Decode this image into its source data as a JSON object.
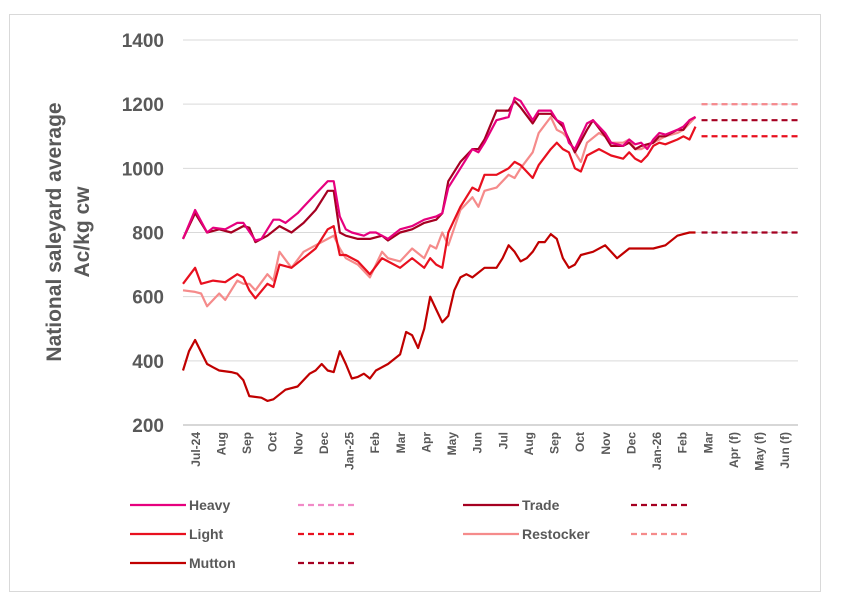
{
  "chart_data": {
    "type": "line",
    "ylabel": [
      "National saleyard average",
      "Ac/kg cw"
    ],
    "ylim": [
      200,
      1400
    ],
    "yticks": [
      200,
      400,
      600,
      800,
      1000,
      1200,
      1400
    ],
    "grid": "horizontal",
    "legend_position": "bottom",
    "month_labels": [
      "Jul-24",
      "Aug",
      "Sep",
      "Oct",
      "Nov",
      "Dec",
      "Jan-25",
      "Feb",
      "Mar",
      "Apr",
      "May",
      "Jun",
      "Jul",
      "Aug",
      "Sep",
      "Oct",
      "Nov",
      "Dec",
      "Jan-26",
      "Feb",
      "Mar",
      "Apr (f)",
      "May (f)",
      "Jun (f)"
    ],
    "x_range_weeks": [
      0,
      102
    ],
    "series": [
      {
        "name": "Heavy",
        "color": "#e6007e",
        "points": [
          [
            0,
            780
          ],
          [
            2,
            870
          ],
          [
            4,
            800
          ],
          [
            5,
            815
          ],
          [
            7,
            810
          ],
          [
            9,
            830
          ],
          [
            10,
            830
          ],
          [
            12,
            775
          ],
          [
            13,
            780
          ],
          [
            15,
            840
          ],
          [
            16,
            840
          ],
          [
            17,
            830
          ],
          [
            19,
            860
          ],
          [
            20,
            880
          ],
          [
            22,
            920
          ],
          [
            24,
            960
          ],
          [
            25,
            960
          ],
          [
            26,
            850
          ],
          [
            27,
            810
          ],
          [
            28,
            800
          ],
          [
            30,
            790
          ],
          [
            31,
            800
          ],
          [
            32,
            800
          ],
          [
            33,
            790
          ],
          [
            34,
            780
          ],
          [
            36,
            810
          ],
          [
            38,
            820
          ],
          [
            40,
            840
          ],
          [
            41,
            845
          ],
          [
            42,
            850
          ],
          [
            43,
            860
          ],
          [
            44,
            940
          ],
          [
            46,
            1000
          ],
          [
            48,
            1060
          ],
          [
            49,
            1050
          ],
          [
            50,
            1080
          ],
          [
            52,
            1150
          ],
          [
            54,
            1160
          ],
          [
            55,
            1220
          ],
          [
            56,
            1210
          ],
          [
            58,
            1150
          ],
          [
            59,
            1180
          ],
          [
            61,
            1180
          ],
          [
            62,
            1150
          ],
          [
            63,
            1140
          ],
          [
            64,
            1080
          ],
          [
            65,
            1060
          ],
          [
            67,
            1140
          ],
          [
            68,
            1150
          ],
          [
            70,
            1110
          ],
          [
            71,
            1080
          ],
          [
            73,
            1070
          ],
          [
            74,
            1090
          ],
          [
            75,
            1075
          ],
          [
            76,
            1080
          ],
          [
            77,
            1060
          ],
          [
            78,
            1090
          ],
          [
            79,
            1110
          ],
          [
            80,
            1105
          ],
          [
            82,
            1120
          ],
          [
            83,
            1130
          ],
          [
            84,
            1150
          ],
          [
            85,
            1160
          ]
        ]
      },
      {
        "name": "Trade",
        "color": "#a50021",
        "points": [
          [
            0,
            780
          ],
          [
            2,
            860
          ],
          [
            4,
            800
          ],
          [
            6,
            810
          ],
          [
            8,
            800
          ],
          [
            10,
            820
          ],
          [
            11,
            815
          ],
          [
            12,
            770
          ],
          [
            14,
            790
          ],
          [
            16,
            820
          ],
          [
            18,
            800
          ],
          [
            20,
            830
          ],
          [
            22,
            870
          ],
          [
            24,
            930
          ],
          [
            25,
            930
          ],
          [
            26,
            800
          ],
          [
            27,
            790
          ],
          [
            29,
            780
          ],
          [
            31,
            780
          ],
          [
            33,
            790
          ],
          [
            34,
            775
          ],
          [
            36,
            800
          ],
          [
            38,
            810
          ],
          [
            40,
            830
          ],
          [
            42,
            840
          ],
          [
            43,
            860
          ],
          [
            44,
            960
          ],
          [
            46,
            1020
          ],
          [
            48,
            1060
          ],
          [
            49,
            1060
          ],
          [
            50,
            1090
          ],
          [
            52,
            1180
          ],
          [
            54,
            1180
          ],
          [
            55,
            1210
          ],
          [
            56,
            1190
          ],
          [
            58,
            1140
          ],
          [
            59,
            1170
          ],
          [
            61,
            1170
          ],
          [
            62,
            1150
          ],
          [
            63,
            1130
          ],
          [
            64,
            1090
          ],
          [
            65,
            1050
          ],
          [
            67,
            1120
          ],
          [
            68,
            1150
          ],
          [
            70,
            1100
          ],
          [
            71,
            1070
          ],
          [
            73,
            1070
          ],
          [
            74,
            1080
          ],
          [
            75,
            1060
          ],
          [
            76,
            1070
          ],
          [
            78,
            1080
          ],
          [
            79,
            1100
          ],
          [
            80,
            1100
          ],
          [
            82,
            1120
          ],
          [
            83,
            1120
          ],
          [
            84,
            1150
          ],
          [
            85,
            1160
          ]
        ]
      },
      {
        "name": "Light",
        "color": "#e8101f",
        "points": [
          [
            0,
            640
          ],
          [
            2,
            690
          ],
          [
            3,
            640
          ],
          [
            5,
            650
          ],
          [
            7,
            645
          ],
          [
            9,
            670
          ],
          [
            10,
            660
          ],
          [
            11,
            620
          ],
          [
            12,
            595
          ],
          [
            14,
            640
          ],
          [
            15,
            630
          ],
          [
            16,
            700
          ],
          [
            18,
            690
          ],
          [
            20,
            720
          ],
          [
            22,
            750
          ],
          [
            24,
            810
          ],
          [
            25,
            820
          ],
          [
            26,
            730
          ],
          [
            27,
            730
          ],
          [
            29,
            710
          ],
          [
            31,
            670
          ],
          [
            33,
            720
          ],
          [
            34,
            710
          ],
          [
            36,
            690
          ],
          [
            38,
            720
          ],
          [
            40,
            690
          ],
          [
            41,
            720
          ],
          [
            42,
            700
          ],
          [
            43,
            690
          ],
          [
            44,
            800
          ],
          [
            46,
            880
          ],
          [
            48,
            940
          ],
          [
            49,
            930
          ],
          [
            50,
            980
          ],
          [
            52,
            980
          ],
          [
            54,
            1000
          ],
          [
            55,
            1020
          ],
          [
            56,
            1010
          ],
          [
            58,
            970
          ],
          [
            59,
            1010
          ],
          [
            61,
            1060
          ],
          [
            62,
            1080
          ],
          [
            63,
            1060
          ],
          [
            64,
            1050
          ],
          [
            65,
            1000
          ],
          [
            66,
            990
          ],
          [
            67,
            1040
          ],
          [
            69,
            1060
          ],
          [
            70,
            1050
          ],
          [
            71,
            1040
          ],
          [
            73,
            1030
          ],
          [
            74,
            1050
          ],
          [
            75,
            1030
          ],
          [
            76,
            1020
          ],
          [
            77,
            1040
          ],
          [
            78,
            1070
          ],
          [
            79,
            1080
          ],
          [
            80,
            1075
          ],
          [
            82,
            1090
          ],
          [
            83,
            1100
          ],
          [
            84,
            1090
          ],
          [
            85,
            1130
          ]
        ]
      },
      {
        "name": "Restocker",
        "color": "#f58b8b",
        "points": [
          [
            0,
            620
          ],
          [
            2,
            615
          ],
          [
            3,
            610
          ],
          [
            4,
            570
          ],
          [
            6,
            610
          ],
          [
            7,
            590
          ],
          [
            9,
            650
          ],
          [
            10,
            640
          ],
          [
            11,
            640
          ],
          [
            12,
            620
          ],
          [
            14,
            670
          ],
          [
            15,
            650
          ],
          [
            16,
            740
          ],
          [
            18,
            690
          ],
          [
            20,
            740
          ],
          [
            22,
            760
          ],
          [
            24,
            780
          ],
          [
            25,
            790
          ],
          [
            26,
            750
          ],
          [
            27,
            720
          ],
          [
            29,
            700
          ],
          [
            31,
            660
          ],
          [
            33,
            740
          ],
          [
            34,
            720
          ],
          [
            36,
            710
          ],
          [
            38,
            750
          ],
          [
            40,
            720
          ],
          [
            41,
            760
          ],
          [
            42,
            750
          ],
          [
            43,
            800
          ],
          [
            44,
            760
          ],
          [
            46,
            870
          ],
          [
            48,
            910
          ],
          [
            49,
            880
          ],
          [
            50,
            930
          ],
          [
            52,
            940
          ],
          [
            54,
            980
          ],
          [
            55,
            970
          ],
          [
            56,
            1000
          ],
          [
            58,
            1050
          ],
          [
            59,
            1110
          ],
          [
            61,
            1160
          ],
          [
            62,
            1120
          ],
          [
            63,
            1110
          ],
          [
            64,
            1090
          ],
          [
            65,
            1050
          ],
          [
            66,
            1020
          ],
          [
            67,
            1080
          ],
          [
            69,
            1110
          ],
          [
            70,
            1100
          ],
          [
            71,
            1080
          ],
          [
            73,
            1080
          ],
          [
            74,
            1090
          ],
          [
            75,
            1060
          ],
          [
            76,
            1060
          ],
          [
            78,
            1080
          ],
          [
            79,
            1090
          ],
          [
            80,
            1100
          ],
          [
            82,
            1110
          ],
          [
            83,
            1120
          ],
          [
            84,
            1140
          ],
          [
            85,
            1160
          ]
        ]
      },
      {
        "name": "Mutton",
        "color": "#c00000",
        "points": [
          [
            0,
            370
          ],
          [
            1,
            430
          ],
          [
            2,
            465
          ],
          [
            4,
            390
          ],
          [
            5,
            380
          ],
          [
            6,
            370
          ],
          [
            8,
            365
          ],
          [
            9,
            360
          ],
          [
            10,
            340
          ],
          [
            11,
            290
          ],
          [
            13,
            285
          ],
          [
            14,
            275
          ],
          [
            15,
            280
          ],
          [
            17,
            310
          ],
          [
            19,
            320
          ],
          [
            21,
            360
          ],
          [
            22,
            370
          ],
          [
            23,
            390
          ],
          [
            24,
            370
          ],
          [
            25,
            365
          ],
          [
            26,
            430
          ],
          [
            27,
            390
          ],
          [
            28,
            345
          ],
          [
            29,
            350
          ],
          [
            30,
            360
          ],
          [
            31,
            345
          ],
          [
            32,
            370
          ],
          [
            34,
            390
          ],
          [
            36,
            420
          ],
          [
            37,
            490
          ],
          [
            38,
            480
          ],
          [
            39,
            440
          ],
          [
            40,
            500
          ],
          [
            41,
            600
          ],
          [
            42,
            560
          ],
          [
            43,
            520
          ],
          [
            44,
            540
          ],
          [
            45,
            620
          ],
          [
            46,
            660
          ],
          [
            47,
            670
          ],
          [
            48,
            660
          ],
          [
            50,
            690
          ],
          [
            52,
            690
          ],
          [
            53,
            720
          ],
          [
            54,
            760
          ],
          [
            55,
            740
          ],
          [
            56,
            710
          ],
          [
            57,
            720
          ],
          [
            58,
            740
          ],
          [
            59,
            770
          ],
          [
            60,
            770
          ],
          [
            61,
            795
          ],
          [
            62,
            780
          ],
          [
            63,
            720
          ],
          [
            64,
            690
          ],
          [
            65,
            700
          ],
          [
            66,
            730
          ],
          [
            68,
            740
          ],
          [
            70,
            760
          ],
          [
            72,
            720
          ],
          [
            74,
            750
          ],
          [
            76,
            750
          ],
          [
            78,
            750
          ],
          [
            80,
            760
          ],
          [
            82,
            790
          ],
          [
            83,
            795
          ],
          [
            84,
            800
          ],
          [
            85,
            800
          ]
        ]
      }
    ],
    "forecast": [
      {
        "name": "Heavy",
        "value": 1200,
        "color": "#f18ac7"
      },
      {
        "name": "Trade",
        "value": 1150,
        "color": "#a50021"
      },
      {
        "name": "Light",
        "value": 1100,
        "color": "#e8101f"
      },
      {
        "name": "Restocker",
        "value": 1200,
        "color": "#f58b8b"
      },
      {
        "name": "Mutton",
        "value": 800,
        "color": "#a50021"
      }
    ],
    "forecast_range_weeks": [
      86,
      102
    ]
  }
}
